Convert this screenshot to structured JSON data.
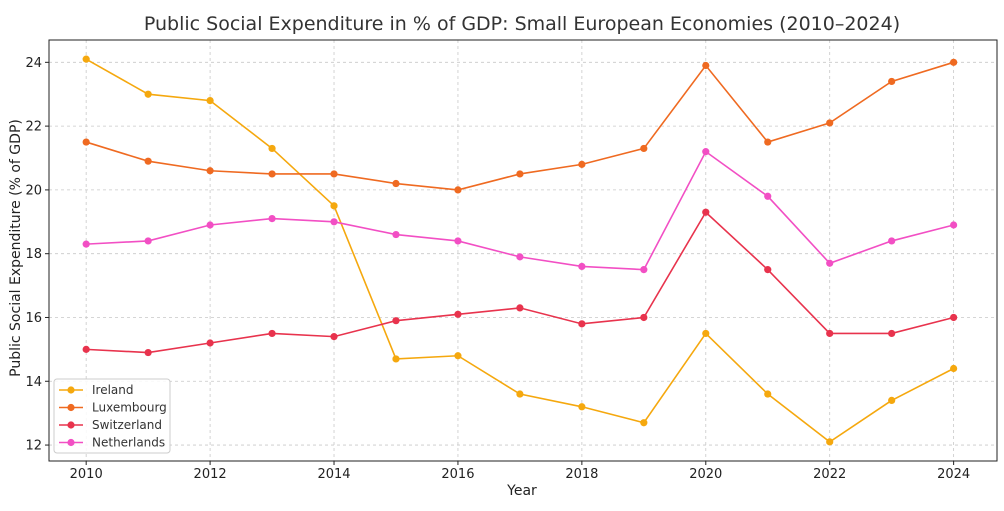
{
  "chart_data": {
    "type": "line",
    "title": "Public Social Expenditure in % of GDP: Small European Economies (2010–2024)",
    "xlabel": "Year",
    "ylabel": "Public Social Expenditure (% of GDP)",
    "x": [
      2010,
      2011,
      2012,
      2013,
      2014,
      2015,
      2016,
      2017,
      2018,
      2019,
      2020,
      2021,
      2022,
      2023,
      2024
    ],
    "xticks": [
      "2010",
      "2012",
      "2014",
      "2016",
      "2018",
      "2020",
      "2022",
      "2024"
    ],
    "yticks": [
      "12",
      "14",
      "16",
      "18",
      "20",
      "22",
      "24"
    ],
    "xlim": [
      2009.4,
      2024.7
    ],
    "ylim": [
      11.5,
      24.7
    ],
    "grid": true,
    "legend_position": "bottom-left",
    "series": [
      {
        "name": "Ireland",
        "color": "#f5a80e",
        "values": [
          24.1,
          23.0,
          22.8,
          21.3,
          19.5,
          14.7,
          14.8,
          13.6,
          13.2,
          12.7,
          15.5,
          13.6,
          12.1,
          13.4,
          14.4
        ]
      },
      {
        "name": "Luxembourg",
        "color": "#ef6a21",
        "values": [
          21.5,
          20.9,
          20.6,
          20.5,
          20.5,
          20.2,
          20.0,
          20.5,
          20.8,
          21.3,
          23.9,
          21.5,
          22.1,
          23.4,
          24.0
        ]
      },
      {
        "name": "Switzerland",
        "color": "#e8334d",
        "values": [
          15.0,
          14.9,
          15.2,
          15.5,
          15.4,
          15.9,
          16.1,
          16.3,
          15.8,
          16.0,
          19.3,
          17.5,
          15.5,
          15.5,
          16.0
        ]
      },
      {
        "name": "Netherlands",
        "color": "#f24fc4",
        "values": [
          18.3,
          18.4,
          18.9,
          19.1,
          19.0,
          18.6,
          18.4,
          17.9,
          17.6,
          17.5,
          21.2,
          19.8,
          17.7,
          18.4,
          18.9
        ]
      }
    ]
  }
}
